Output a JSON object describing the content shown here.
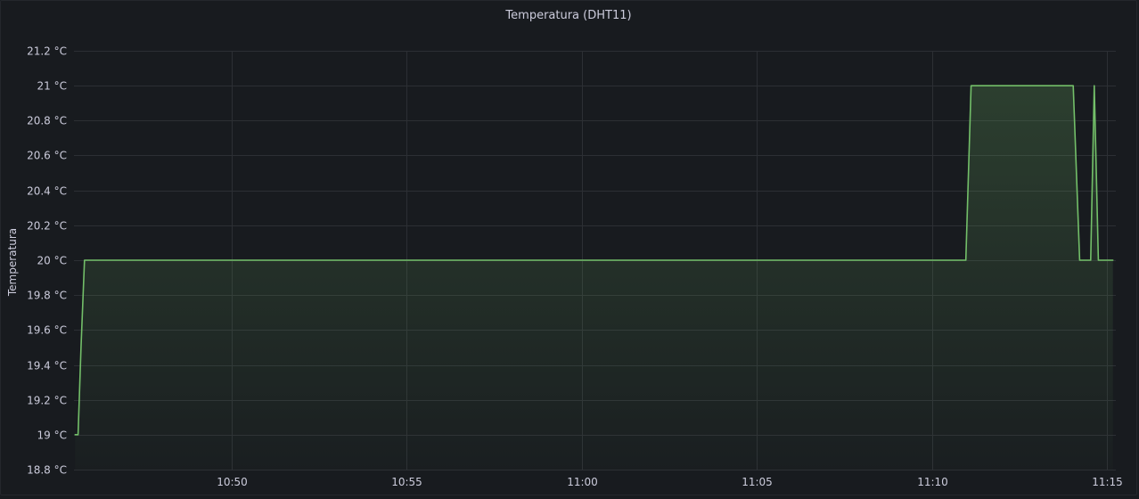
{
  "panel": {
    "title": "Temperatura (DHT11)"
  },
  "colors": {
    "background": "#181b1f",
    "grid": "#2c2f34",
    "series": "#73bf69",
    "text": "#ccccdc"
  },
  "chart_data": {
    "type": "area",
    "title": "Temperatura (DHT11)",
    "xlabel": "",
    "ylabel": "Temperatura",
    "unit": "°C",
    "grid": true,
    "legend": "none",
    "ylim": [
      18.8,
      21.2
    ],
    "xlim": [
      "10:45:30",
      "11:15:15"
    ],
    "y_ticks": [
      "21.2 °C",
      "21 °C",
      "20.8 °C",
      "20.6 °C",
      "20.4 °C",
      "20.2 °C",
      "20 °C",
      "19.8 °C",
      "19.6 °C",
      "19.4 °C",
      "19.2 °C",
      "19 °C",
      "18.8 °C"
    ],
    "y_tick_values": [
      21.2,
      21.0,
      20.8,
      20.6,
      20.4,
      20.2,
      20.0,
      19.8,
      19.6,
      19.4,
      19.2,
      19.0,
      18.8
    ],
    "x_ticks": [
      "10:50",
      "10:55",
      "11:00",
      "11:05",
      "11:10",
      "11:15"
    ],
    "x_tick_times": [
      "10:50:00",
      "10:55:00",
      "11:00:00",
      "11:05:00",
      "11:10:00",
      "11:15:00"
    ],
    "series": [
      {
        "points": [
          [
            "10:45:32",
            19.0
          ],
          [
            "10:45:37",
            19.0
          ],
          [
            "10:45:42",
            19.5
          ],
          [
            "10:45:48",
            20.0
          ],
          [
            "11:10:58",
            20.0
          ],
          [
            "11:11:07",
            21.0
          ],
          [
            "11:14:02",
            21.0
          ],
          [
            "11:14:13",
            20.0
          ],
          [
            "11:14:32",
            20.0
          ],
          [
            "11:14:38",
            21.0
          ],
          [
            "11:14:45",
            20.0
          ],
          [
            "11:15:10",
            20.0
          ]
        ]
      }
    ]
  }
}
